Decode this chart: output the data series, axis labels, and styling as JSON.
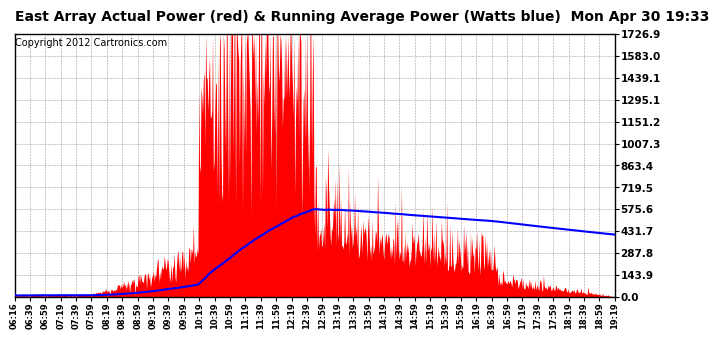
{
  "title": "East Array Actual Power (red) & Running Average Power (Watts blue)  Mon Apr 30 19:33",
  "copyright": "Copyright 2012 Cartronics.com",
  "ymin": 0.0,
  "ymax": 1726.9,
  "yticks": [
    0.0,
    143.9,
    287.8,
    431.7,
    575.6,
    719.5,
    863.4,
    1007.3,
    1151.2,
    1295.1,
    1439.1,
    1583.0,
    1726.9
  ],
  "background_color": "#ffffff",
  "plot_bg_color": "#ffffff",
  "grid_color": "#888888",
  "actual_color": "#ff0000",
  "avg_color": "#0000ff",
  "title_fontsize": 10,
  "copyright_fontsize": 7,
  "xtick_labels": [
    "06:16",
    "06:39",
    "06:59",
    "07:19",
    "07:39",
    "07:59",
    "08:19",
    "08:39",
    "08:59",
    "09:19",
    "09:39",
    "09:59",
    "10:19",
    "10:39",
    "10:59",
    "11:19",
    "11:39",
    "11:59",
    "12:19",
    "12:39",
    "12:59",
    "13:19",
    "13:39",
    "13:59",
    "14:19",
    "14:39",
    "14:59",
    "15:19",
    "15:39",
    "15:59",
    "16:19",
    "16:39",
    "16:59",
    "17:19",
    "17:39",
    "17:59",
    "18:19",
    "18:39",
    "18:59",
    "19:19"
  ]
}
